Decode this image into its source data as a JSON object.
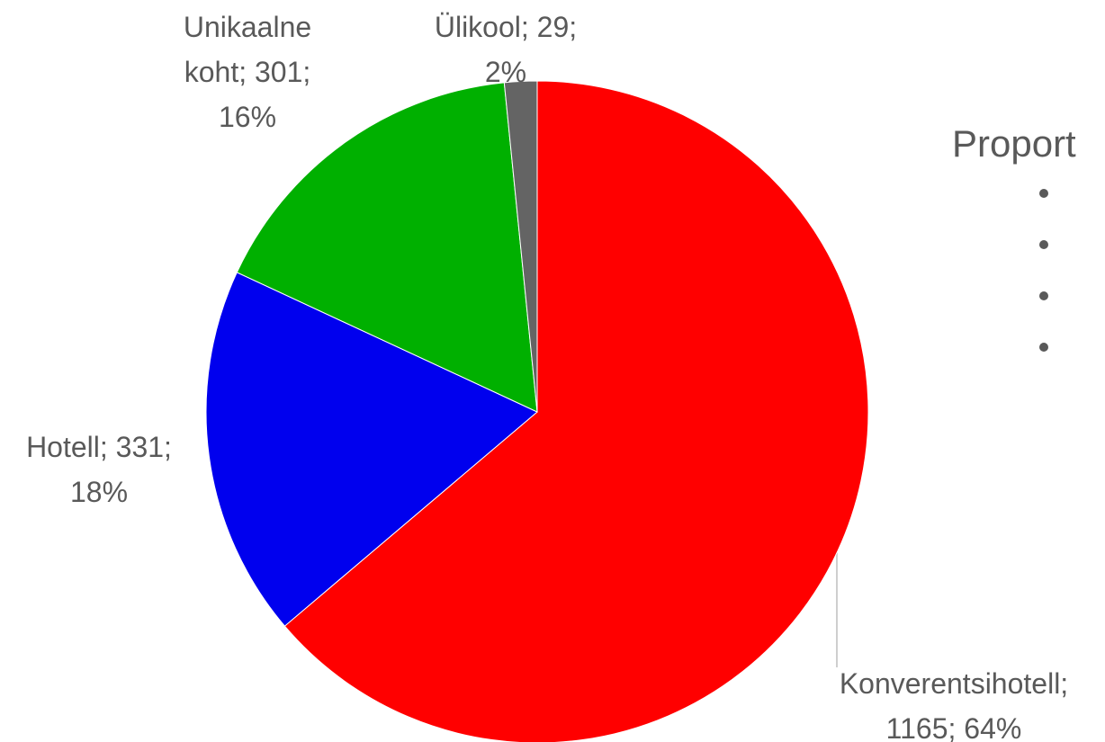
{
  "chart_data": {
    "type": "pie",
    "categories": [
      "Konverentsihotell",
      "Hotell",
      "Unikaalne koht",
      "Ülikool"
    ],
    "values": [
      1165,
      331,
      301,
      29
    ],
    "value_labels": [
      "Konverentsihotell; 1165; 64%",
      "Hotell; 331; 18%",
      "Unikaalne koht; 301; 16%",
      "Ülikool; 29; 2%"
    ],
    "colors": [
      "#ff0000",
      "#0000ee",
      "#00b000",
      "#646464"
    ],
    "legend_title": "Proport"
  }
}
